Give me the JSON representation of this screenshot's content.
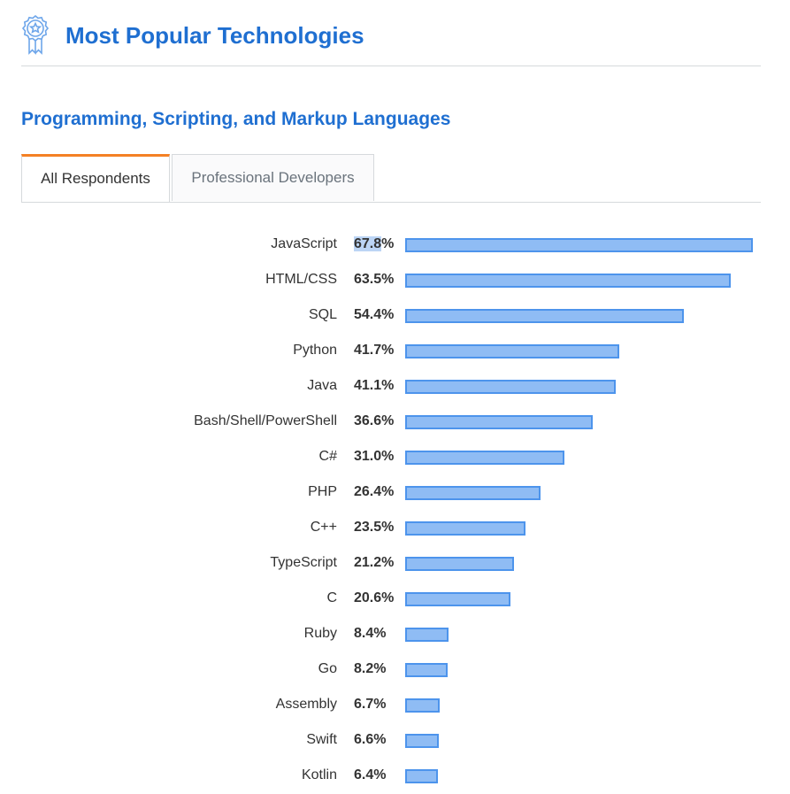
{
  "header": {
    "title": "Most Popular Technologies",
    "icon": "award-badge-icon"
  },
  "section": {
    "title": "Programming, Scripting, and Markup Languages"
  },
  "tabs": [
    {
      "label": "All Respondents",
      "active": true
    },
    {
      "label": "Professional Developers",
      "active": false
    }
  ],
  "colors": {
    "accent": "#1f6fd1",
    "tab_active_border": "#f48024",
    "bar_fill": "#8fbcf4",
    "bar_border": "#4d94ec"
  },
  "chart_data": {
    "type": "bar",
    "orientation": "horizontal",
    "categories": [
      "JavaScript",
      "HTML/CSS",
      "SQL",
      "Python",
      "Java",
      "Bash/Shell/PowerShell",
      "C#",
      "PHP",
      "C++",
      "TypeScript",
      "C",
      "Ruby",
      "Go",
      "Assembly",
      "Swift",
      "Kotlin"
    ],
    "values": [
      67.8,
      63.5,
      54.4,
      41.7,
      41.1,
      36.6,
      31.0,
      26.4,
      23.5,
      21.2,
      20.6,
      8.4,
      8.2,
      6.7,
      6.6,
      6.4
    ],
    "value_labels": [
      "67.8%",
      "63.5%",
      "54.4%",
      "41.7%",
      "41.1%",
      "36.6%",
      "31.0%",
      "26.4%",
      "23.5%",
      "21.2%",
      "20.6%",
      "8.4%",
      "8.2%",
      "6.7%",
      "6.6%",
      "6.4%"
    ],
    "unit": "%",
    "xlim": [
      0,
      67.8
    ],
    "grid": false,
    "legend": "none"
  }
}
